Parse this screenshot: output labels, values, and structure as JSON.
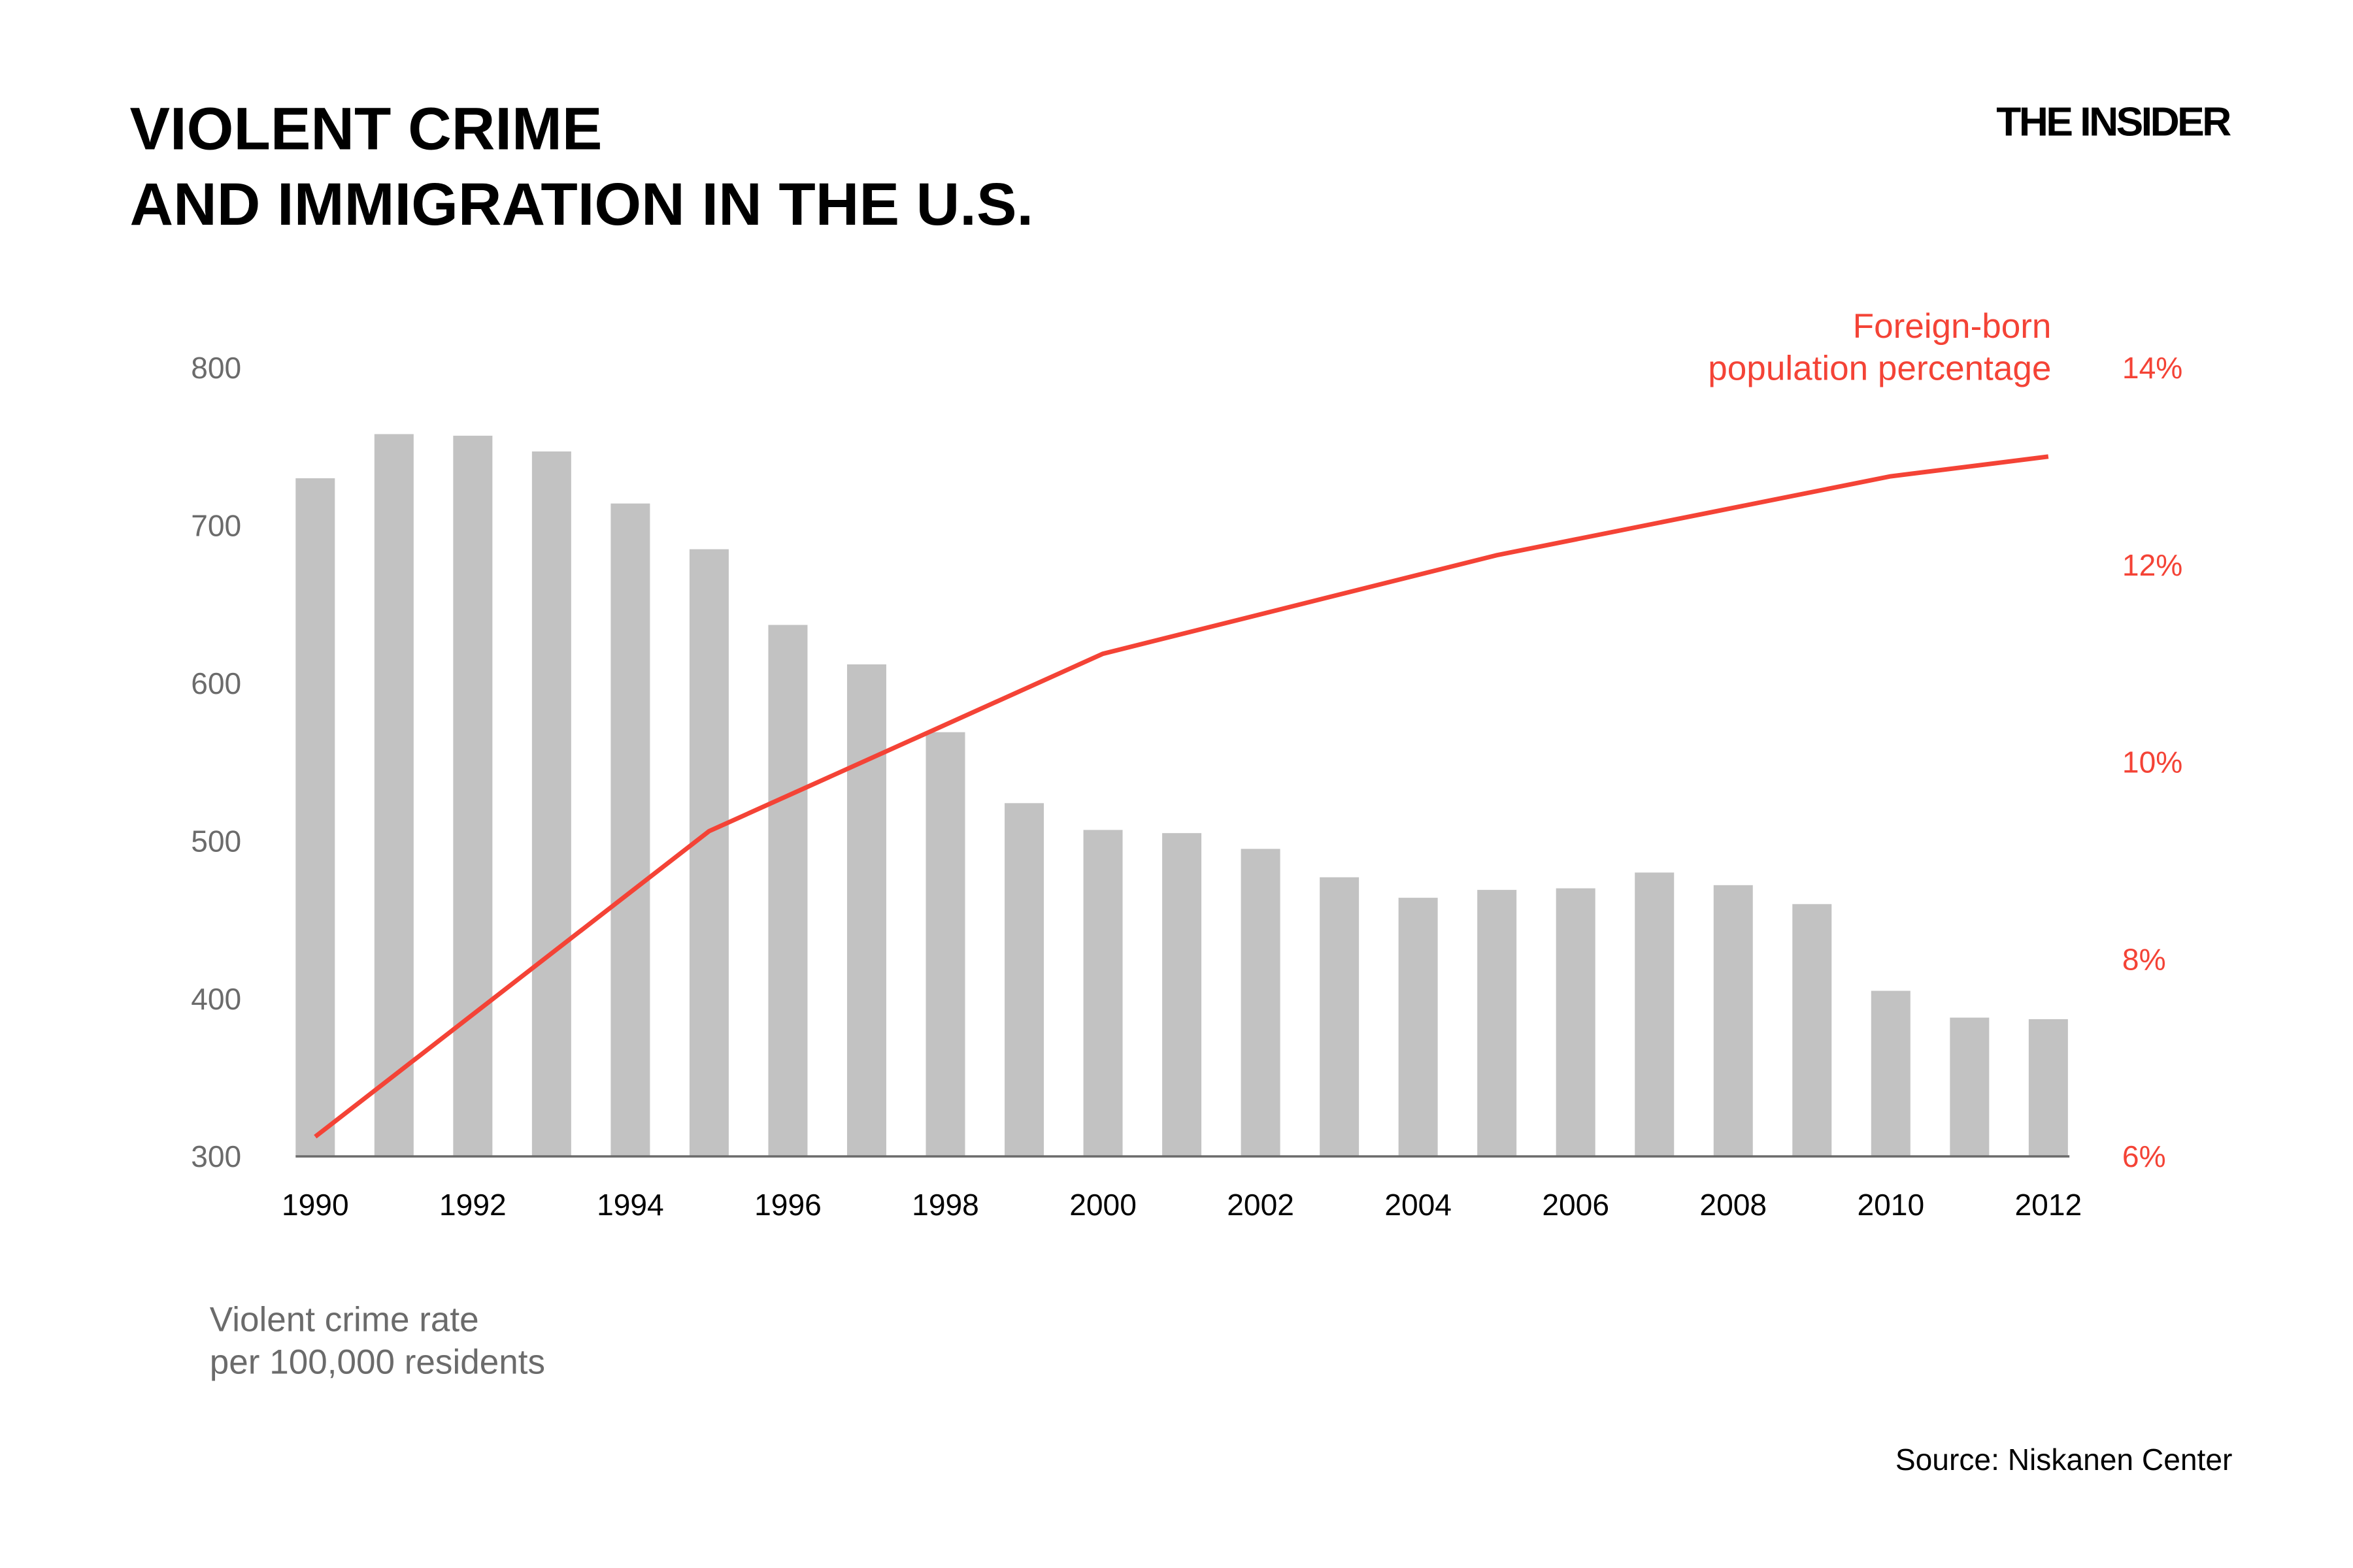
{
  "header": {
    "title_line1": "VIOLENT CRIME",
    "title_line2": "AND IMMIGRATION IN THE U.S.",
    "logo": "THE INSIDER"
  },
  "source": "Source: Niskanen Center",
  "chart_data": {
    "type": "bar+line",
    "title": "VIOLENT CRIME AND IMMIGRATION IN THE U.S.",
    "x_ticks": [
      "1990",
      "1992",
      "1994",
      "1996",
      "1998",
      "2000",
      "2002",
      "2004",
      "2006",
      "2008",
      "2010",
      "2012"
    ],
    "left_axis": {
      "label_line1": "Violent crime rate",
      "label_line2": "per 100,000 residents",
      "range": [
        300,
        800
      ],
      "ticks": [
        "800",
        "700",
        "600",
        "500",
        "400",
        "300"
      ],
      "tick_values": [
        800,
        700,
        600,
        500,
        400,
        300
      ]
    },
    "right_axis": {
      "range": [
        6,
        14
      ],
      "ticks": [
        "14%",
        "12%",
        "10%",
        "8%",
        "6%"
      ],
      "tick_values": [
        14,
        12,
        10,
        8,
        6
      ]
    },
    "bars": {
      "color": "#c2c2c2",
      "years": [
        1990,
        1991,
        1992,
        1993,
        1994,
        1995,
        1996,
        1997,
        1998,
        1999,
        2000,
        2001,
        2002,
        2003,
        2004,
        2005,
        2006,
        2007,
        2008,
        2009,
        2010,
        2011,
        2012
      ],
      "values": [
        730,
        758,
        757,
        747,
        714,
        685,
        637,
        612,
        569,
        524,
        507,
        505,
        495,
        477,
        464,
        469,
        470,
        480,
        472,
        460,
        405,
        388,
        387
      ]
    },
    "line": {
      "name_line1": "Foreign-born",
      "name_line2": "population percentage",
      "color": "#f44336",
      "years": [
        1990,
        1995,
        2000,
        2005,
        2010,
        2012
      ],
      "values": [
        6.2,
        9.3,
        11.1,
        12.1,
        12.9,
        13.1
      ]
    },
    "grid": false
  }
}
